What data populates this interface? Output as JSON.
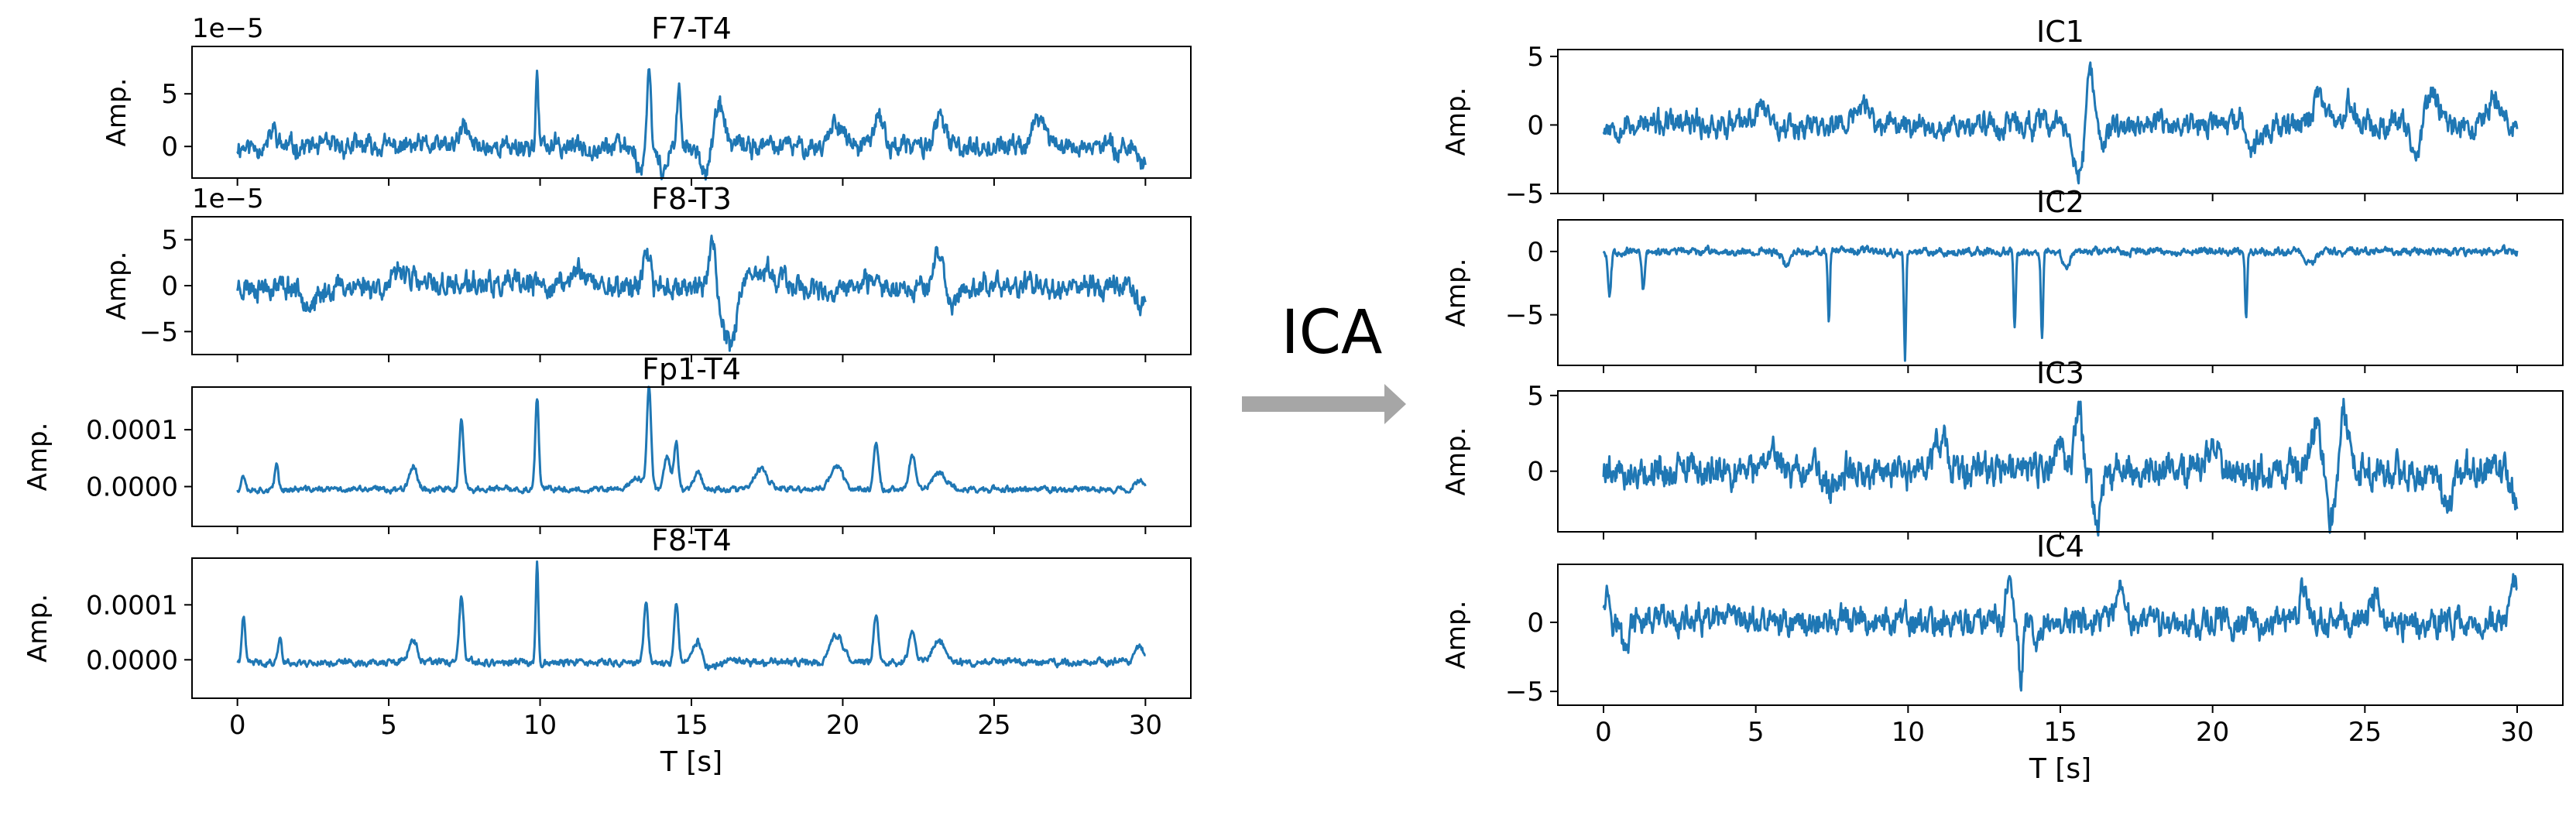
{
  "colors": {
    "series": "#1f77b4",
    "arrow": "#a6a6a6"
  },
  "arrow_label": "ICA",
  "chart_data": [
    {
      "type": "line",
      "title": "F7-T4",
      "xlabel": "",
      "ylabel": "Amp.",
      "offset_text": "1e−5",
      "xlim": [
        -1.5,
        31.5
      ],
      "ylim": [
        -3,
        9.5
      ],
      "xticks": [
        0,
        5,
        10,
        15,
        20,
        25,
        30
      ],
      "yticks": [
        {
          "v": 5,
          "l": "5"
        },
        {
          "v": 0,
          "l": "0"
        }
      ],
      "series": [
        {
          "x_range": [
            0,
            30
          ],
          "baseline": 0,
          "noise": 0.9,
          "seed": 11,
          "events": [
            [
              1.2,
              1.6,
              0.15
            ],
            [
              7.5,
              1.8,
              0.2
            ],
            [
              9.9,
              7,
              0.06
            ],
            [
              13.3,
              -2.2,
              0.15
            ],
            [
              13.6,
              8.5,
              0.08
            ],
            [
              14.1,
              -2.5,
              0.2
            ],
            [
              14.6,
              5,
              0.1
            ],
            [
              15.5,
              -2.2,
              0.3
            ],
            [
              15.9,
              4,
              0.25
            ],
            [
              19.8,
              2.5,
              0.3
            ],
            [
              21.2,
              3,
              0.2
            ],
            [
              23.2,
              2.5,
              0.25
            ],
            [
              26.5,
              2.8,
              0.3
            ],
            [
              29.9,
              -1.5,
              0.2
            ]
          ]
        }
      ]
    },
    {
      "type": "line",
      "title": "F8-T3",
      "xlabel": "",
      "ylabel": "Amp.",
      "offset_text": "1e−5",
      "xlim": [
        -1.5,
        31.5
      ],
      "ylim": [
        -7.5,
        7.5
      ],
      "xticks": [
        0,
        5,
        10,
        15,
        20,
        25,
        30
      ],
      "yticks": [
        {
          "v": 5,
          "l": "5"
        },
        {
          "v": 0,
          "l": "0"
        },
        {
          "v": -5,
          "l": "−5"
        }
      ],
      "series": [
        {
          "x_range": [
            0,
            30
          ],
          "baseline": 0,
          "noise": 1.2,
          "seed": 23,
          "events": [
            [
              2.5,
              -2,
              0.4
            ],
            [
              5.5,
              1.8,
              0.3
            ],
            [
              11.3,
              2,
              0.3
            ],
            [
              13.5,
              3.5,
              0.15
            ],
            [
              15.7,
              6,
              0.12
            ],
            [
              16.0,
              -2.5,
              0.15
            ],
            [
              16.3,
              -6,
              0.25
            ],
            [
              17.5,
              1.5,
              0.5
            ],
            [
              19.5,
              -1.5,
              0.4
            ],
            [
              23.2,
              3.5,
              0.25
            ],
            [
              23.6,
              -2.5,
              0.3
            ],
            [
              29.8,
              -2.2,
              0.2
            ]
          ]
        }
      ]
    },
    {
      "type": "line",
      "title": "Fp1-T4",
      "xlabel": "",
      "ylabel": "Amp.",
      "offset_text": "",
      "xlim": [
        -1.5,
        31.5
      ],
      "ylim": [
        -7e-05,
        0.000175
      ],
      "xticks": [
        0,
        5,
        10,
        15,
        20,
        25,
        30
      ],
      "yticks": [
        {
          "v": 0.0001,
          "l": "0.0001"
        },
        {
          "v": 0,
          "l": "0.0000"
        }
      ],
      "series": [
        {
          "x_range": [
            0,
            30
          ],
          "baseline": -5e-06,
          "noise": 5e-06,
          "seed": 37,
          "events": [
            [
              0.2,
              2.5e-05,
              0.1
            ],
            [
              1.3,
              4.5e-05,
              0.08
            ],
            [
              5.8,
              4e-05,
              0.2
            ],
            [
              7.4,
              0.00012,
              0.1
            ],
            [
              9.9,
              0.000165,
              0.08
            ],
            [
              13.2,
              2e-05,
              0.3
            ],
            [
              13.6,
              0.000175,
              0.1
            ],
            [
              14.2,
              6e-05,
              0.15
            ],
            [
              14.5,
              8e-05,
              0.1
            ],
            [
              15.2,
              3e-05,
              0.2
            ],
            [
              17.3,
              3.5e-05,
              0.3
            ],
            [
              19.8,
              4e-05,
              0.3
            ],
            [
              21.1,
              8e-05,
              0.12
            ],
            [
              22.3,
              6e-05,
              0.15
            ],
            [
              23.2,
              3e-05,
              0.3
            ],
            [
              29.8,
              1.5e-05,
              0.2
            ]
          ]
        }
      ]
    },
    {
      "type": "line",
      "title": "F8-T4",
      "xlabel": "T [s]",
      "ylabel": "Amp.",
      "offset_text": "",
      "xlim": [
        -1.5,
        31.5
      ],
      "ylim": [
        -7e-05,
        0.000185
      ],
      "xticks": [
        0,
        5,
        10,
        15,
        20,
        25,
        30
      ],
      "yticks": [
        {
          "v": 0.0001,
          "l": "0.0001"
        },
        {
          "v": 0,
          "l": "0.0000"
        }
      ],
      "series": [
        {
          "x_range": [
            0,
            30
          ],
          "baseline": -5e-06,
          "noise": 6e-06,
          "seed": 41,
          "events": [
            [
              0.2,
              8e-05,
              0.08
            ],
            [
              1.4,
              5e-05,
              0.08
            ],
            [
              5.8,
              4e-05,
              0.2
            ],
            [
              7.4,
              0.00012,
              0.1
            ],
            [
              9.9,
              0.000185,
              0.06
            ],
            [
              13.5,
              0.00011,
              0.1
            ],
            [
              14.5,
              0.00011,
              0.1
            ],
            [
              15.2,
              4e-05,
              0.2
            ],
            [
              15.6,
              -1e-05,
              0.3
            ],
            [
              19.8,
              5e-05,
              0.3
            ],
            [
              21.1,
              8e-05,
              0.12
            ],
            [
              22.3,
              6e-05,
              0.15
            ],
            [
              23.2,
              4e-05,
              0.3
            ],
            [
              29.8,
              3e-05,
              0.2
            ]
          ]
        }
      ]
    },
    {
      "type": "line",
      "title": "IC1",
      "xlabel": "",
      "ylabel": "Amp.",
      "offset_text": "",
      "xlim": [
        -1.5,
        31.5
      ],
      "ylim": [
        -5,
        5.5
      ],
      "xticks": [
        0,
        5,
        10,
        15,
        20,
        25,
        30
      ],
      "yticks": [
        {
          "v": 5,
          "l": "5"
        },
        {
          "v": 0,
          "l": "0"
        },
        {
          "v": -5,
          "l": "−5"
        }
      ],
      "series": [
        {
          "x_range": [
            0,
            30
          ],
          "baseline": 0,
          "noise": 0.85,
          "seed": 53,
          "events": [
            [
              5.2,
              1.5,
              0.3
            ],
            [
              8.5,
              1.5,
              0.3
            ],
            [
              15.6,
              -3.5,
              0.25
            ],
            [
              16.0,
              4.5,
              0.15
            ],
            [
              16.4,
              -1.5,
              0.2
            ],
            [
              21.4,
              -1.5,
              0.3
            ],
            [
              23.5,
              2.5,
              0.25
            ],
            [
              24.5,
              1.5,
              0.3
            ],
            [
              26.7,
              -2.2,
              0.2
            ],
            [
              27.2,
              2,
              0.3
            ],
            [
              29.3,
              2,
              0.3
            ]
          ]
        }
      ]
    },
    {
      "type": "line",
      "title": "IC2",
      "xlabel": "",
      "ylabel": "Amp.",
      "offset_text": "",
      "xlim": [
        -1.5,
        31.5
      ],
      "ylim": [
        -9,
        2.5
      ],
      "xticks": [
        0,
        5,
        10,
        15,
        20,
        25,
        30
      ],
      "yticks": [
        {
          "v": 0,
          "l": "0"
        },
        {
          "v": -5,
          "l": "−5"
        }
      ],
      "series": [
        {
          "x_range": [
            0,
            30
          ],
          "baseline": 0,
          "noise": 0.28,
          "seed": 67,
          "events": [
            [
              0.2,
              -3.5,
              0.07
            ],
            [
              1.3,
              -3,
              0.07
            ],
            [
              7.4,
              -5.8,
              0.05
            ],
            [
              9.9,
              -8.5,
              0.05
            ],
            [
              13.5,
              -5.8,
              0.05
            ],
            [
              14.4,
              -7,
              0.05
            ],
            [
              15.2,
              -1.5,
              0.15
            ],
            [
              21.1,
              -5.5,
              0.05
            ],
            [
              6.0,
              -1.2,
              0.15
            ],
            [
              23.2,
              -1,
              0.2
            ]
          ]
        }
      ]
    },
    {
      "type": "line",
      "title": "IC3",
      "xlabel": "",
      "ylabel": "Amp.",
      "offset_text": "",
      "xlim": [
        -1.5,
        31.5
      ],
      "ylim": [
        -4,
        5.3
      ],
      "xticks": [
        0,
        5,
        10,
        15,
        20,
        25,
        30
      ],
      "yticks": [
        {
          "v": 5,
          "l": "5"
        },
        {
          "v": 0,
          "l": "0"
        }
      ],
      "series": [
        {
          "x_range": [
            0,
            30
          ],
          "baseline": 0,
          "noise": 1.0,
          "seed": 79,
          "events": [
            [
              5.5,
              1.5,
              0.3
            ],
            [
              7.5,
              -1.5,
              0.3
            ],
            [
              11.0,
              2,
              0.3
            ],
            [
              15.0,
              2,
              0.2
            ],
            [
              15.6,
              4.5,
              0.15
            ],
            [
              16.2,
              -3.5,
              0.2
            ],
            [
              20.0,
              2,
              0.3
            ],
            [
              23.4,
              3.5,
              0.25
            ],
            [
              23.9,
              -3.2,
              0.25
            ],
            [
              24.3,
              4,
              0.2
            ],
            [
              27.7,
              -2.5,
              0.25
            ],
            [
              29.9,
              -2,
              0.2
            ]
          ]
        }
      ]
    },
    {
      "type": "line",
      "title": "IC4",
      "xlabel": "T [s]",
      "ylabel": "Amp.",
      "offset_text": "",
      "xlim": [
        -1.5,
        31.5
      ],
      "ylim": [
        -6,
        4.2
      ],
      "xticks": [
        0,
        5,
        10,
        15,
        20,
        25,
        30
      ],
      "yticks": [
        {
          "v": 0,
          "l": "0"
        },
        {
          "v": -5,
          "l": "−5"
        }
      ],
      "series": [
        {
          "x_range": [
            0,
            30
          ],
          "baseline": 0,
          "noise": 0.95,
          "seed": 97,
          "events": [
            [
              0.1,
              2.5,
              0.15
            ],
            [
              0.7,
              -2,
              0.15
            ],
            [
              13.3,
              3.2,
              0.12
            ],
            [
              13.7,
              -5,
              0.08
            ],
            [
              14.2,
              -2,
              0.15
            ],
            [
              17.0,
              2,
              0.2
            ],
            [
              23.0,
              2.5,
              0.2
            ],
            [
              25.3,
              2,
              0.2
            ],
            [
              29.9,
              2.8,
              0.15
            ]
          ]
        }
      ]
    }
  ]
}
